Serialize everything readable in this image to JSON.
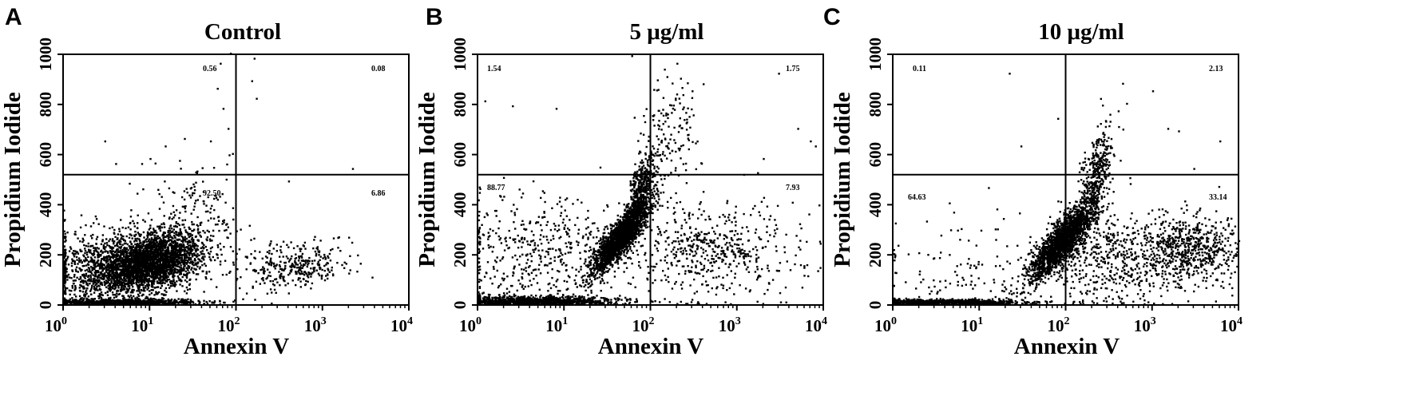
{
  "chart_data": [
    {
      "type": "scatter",
      "panel_letter": "A",
      "title": "Control",
      "xlabel": "Annexin V",
      "ylabel": "Propidium Iodide",
      "x_scale": "log",
      "xlim": [
        1,
        10000
      ],
      "ylim": [
        0,
        1000
      ],
      "x_ticks": [
        {
          "base": "10",
          "exp": "0"
        },
        {
          "base": "10",
          "exp": "1"
        },
        {
          "base": "10",
          "exp": "2"
        },
        {
          "base": "10",
          "exp": "3"
        },
        {
          "base": "10",
          "exp": "4"
        }
      ],
      "y_ticks": [
        "0",
        "200",
        "400",
        "600",
        "800",
        "1000"
      ],
      "gate_x": 100,
      "gate_y": 520,
      "quadrants": {
        "UL": "0.56",
        "UR": "0.08",
        "LL": "92.50",
        "LR": "6.86"
      },
      "populations": [
        {
          "cx": 10,
          "cy": 170,
          "sx": 0.28,
          "sy": 55,
          "n": 2600,
          "corr": 0.3
        },
        {
          "cx": 3,
          "cy": 140,
          "sx": 0.35,
          "sy": 80,
          "n": 900,
          "corr": 0
        },
        {
          "cx": 500,
          "cy": 150,
          "sx": 0.35,
          "sy": 45,
          "n": 340,
          "corr": 0.2
        },
        {
          "cx": 4,
          "cy": 8,
          "sx": 0.5,
          "sy": 6,
          "n": 800,
          "corr": 0
        },
        {
          "cx": 30,
          "cy": 300,
          "sx": 0.3,
          "sy": 120,
          "n": 250,
          "corr": 0
        }
      ],
      "points": [
        [
          60,
          860
        ],
        [
          70,
          780
        ],
        [
          80,
          700
        ],
        [
          90,
          600
        ],
        [
          65,
          960
        ],
        [
          85,
          1000
        ],
        [
          150,
          890
        ],
        [
          160,
          980
        ],
        [
          170,
          820
        ],
        [
          50,
          650
        ],
        [
          25,
          660
        ],
        [
          15,
          630
        ],
        [
          10,
          580
        ],
        [
          8,
          560
        ],
        [
          2200,
          540
        ],
        [
          400,
          490
        ],
        [
          3,
          650
        ],
        [
          4,
          560
        ],
        [
          35,
          530
        ]
      ]
    },
    {
      "type": "scatter",
      "panel_letter": "B",
      "title": "5 μg/ml",
      "xlabel": "Annexin V",
      "ylabel": "Propidium Iodide",
      "x_scale": "log",
      "xlim": [
        1,
        10000
      ],
      "ylim": [
        0,
        1000
      ],
      "x_ticks": [
        {
          "base": "10",
          "exp": "0"
        },
        {
          "base": "10",
          "exp": "1"
        },
        {
          "base": "10",
          "exp": "2"
        },
        {
          "base": "10",
          "exp": "3"
        },
        {
          "base": "10",
          "exp": "4"
        }
      ],
      "y_ticks": [
        "0",
        "200",
        "400",
        "600",
        "800",
        "1000"
      ],
      "gate_x": 100,
      "gate_y": 520,
      "quadrants": {
        "UL": "1.54",
        "UR": "1.75",
        "LL": "88.77",
        "LR": "7.93"
      },
      "populations": [
        {
          "cx": 45,
          "cy": 270,
          "sx": 0.16,
          "sy": 70,
          "n": 2000,
          "corr": 0.85
        },
        {
          "cx": 75,
          "cy": 450,
          "sx": 0.08,
          "sy": 70,
          "n": 450,
          "corr": 0.6
        },
        {
          "cx": 4,
          "cy": 12,
          "sx": 0.55,
          "sy": 10,
          "n": 1100,
          "corr": 0
        },
        {
          "cx": 5,
          "cy": 200,
          "sx": 0.5,
          "sy": 120,
          "n": 500,
          "corr": 0
        },
        {
          "cx": 500,
          "cy": 220,
          "sx": 0.5,
          "sy": 100,
          "n": 550,
          "corr": 0
        },
        {
          "cx": 160,
          "cy": 680,
          "sx": 0.15,
          "sy": 110,
          "n": 150,
          "corr": 0
        }
      ],
      "points": [
        [
          1.2,
          810
        ],
        [
          2.5,
          790
        ],
        [
          8,
          780
        ],
        [
          60,
          990
        ],
        [
          200,
          960
        ],
        [
          220,
          900
        ],
        [
          3000,
          920
        ],
        [
          5000,
          700
        ],
        [
          7000,
          650
        ],
        [
          8000,
          630
        ],
        [
          2000,
          580
        ],
        [
          300,
          850
        ]
      ]
    },
    {
      "type": "scatter",
      "panel_letter": "C",
      "title": "10 μg/ml",
      "xlabel": "Annexin V",
      "ylabel": "Propidium Iodide",
      "x_scale": "log",
      "xlim": [
        1,
        10000
      ],
      "ylim": [
        0,
        1000
      ],
      "x_ticks": [
        {
          "base": "10",
          "exp": "0"
        },
        {
          "base": "10",
          "exp": "1"
        },
        {
          "base": "10",
          "exp": "2"
        },
        {
          "base": "10",
          "exp": "3"
        },
        {
          "base": "10",
          "exp": "4"
        }
      ],
      "y_ticks": [
        "0",
        "200",
        "400",
        "600",
        "800",
        "1000"
      ],
      "gate_x": 100,
      "gate_y": 520,
      "quadrants": {
        "UL": "0.11",
        "UR": "2.13",
        "LL": "64.63",
        "LR": "33.14"
      },
      "populations": [
        {
          "cx": 90,
          "cy": 250,
          "sx": 0.2,
          "sy": 80,
          "n": 1900,
          "corr": 0.85
        },
        {
          "cx": 220,
          "cy": 520,
          "sx": 0.1,
          "sy": 90,
          "n": 350,
          "corr": 0.6
        },
        {
          "cx": 4,
          "cy": 8,
          "sx": 0.45,
          "sy": 6,
          "n": 900,
          "corr": 0
        },
        {
          "cx": 2500,
          "cy": 220,
          "sx": 0.35,
          "sy": 70,
          "n": 700,
          "corr": 0
        },
        {
          "cx": 300,
          "cy": 180,
          "sx": 0.4,
          "sy": 100,
          "n": 500,
          "corr": 0
        },
        {
          "cx": 6,
          "cy": 100,
          "sx": 0.5,
          "sy": 120,
          "n": 150,
          "corr": 0
        }
      ],
      "points": [
        [
          22,
          920
        ],
        [
          30,
          630
        ],
        [
          80,
          740
        ],
        [
          450,
          880
        ],
        [
          1000,
          850
        ],
        [
          2000,
          690
        ],
        [
          3000,
          540
        ],
        [
          6000,
          650
        ],
        [
          1500,
          700
        ],
        [
          500,
          800
        ],
        [
          400,
          770
        ]
      ]
    }
  ]
}
